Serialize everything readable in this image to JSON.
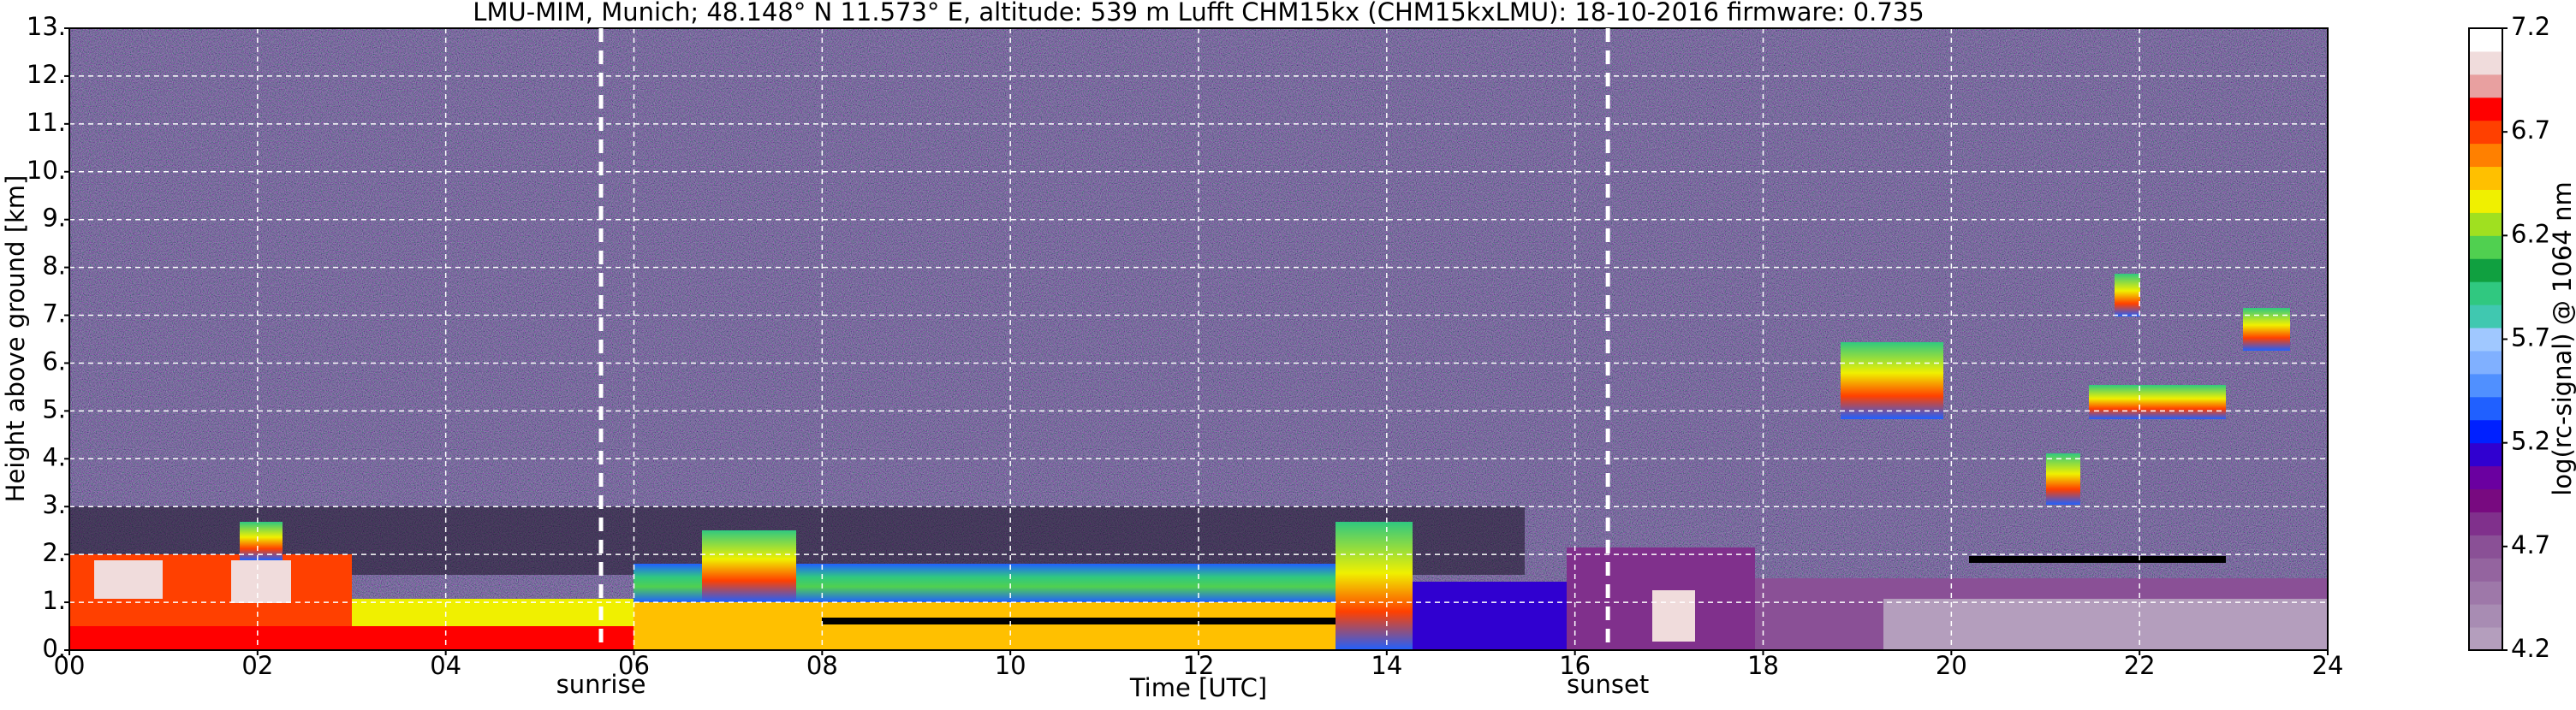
{
  "chart_data": {
    "type": "heatmap",
    "title": "LMU-MIM, Munich; 48.148° N 11.573° E, altitude: 539 m    Lufft CHM15kx (CHM15kxLMU): 18-10-2016    firmware: 0.735",
    "x_label": "Time [UTC]",
    "y_label": "Height above ground [km]",
    "xlim": [
      0,
      24
    ],
    "xticks": [
      {
        "value": 0,
        "label": "00"
      },
      {
        "value": 2,
        "label": "02"
      },
      {
        "value": 4,
        "label": "04"
      },
      {
        "value": 6,
        "label": "06"
      },
      {
        "value": 8,
        "label": "08"
      },
      {
        "value": 10,
        "label": "10"
      },
      {
        "value": 12,
        "label": "12"
      },
      {
        "value": 14,
        "label": "14"
      },
      {
        "value": 16,
        "label": "16"
      },
      {
        "value": 18,
        "label": "18"
      },
      {
        "value": 20,
        "label": "20"
      },
      {
        "value": 22,
        "label": "22"
      },
      {
        "value": 24,
        "label": "24"
      }
    ],
    "ylim": [
      0,
      13
    ],
    "yticks": [
      {
        "value": 0,
        "label": "0."
      },
      {
        "value": 1,
        "label": "1."
      },
      {
        "value": 2,
        "label": "2."
      },
      {
        "value": 3,
        "label": "3."
      },
      {
        "value": 4,
        "label": "4."
      },
      {
        "value": 5,
        "label": "5."
      },
      {
        "value": 6,
        "label": "6."
      },
      {
        "value": 7,
        "label": "7."
      },
      {
        "value": 8,
        "label": "8."
      },
      {
        "value": 9,
        "label": "9."
      },
      {
        "value": 10,
        "label": "10."
      },
      {
        "value": 11,
        "label": "11."
      },
      {
        "value": 12,
        "label": "12."
      },
      {
        "value": 13,
        "label": "13."
      }
    ],
    "grid": true,
    "annotations": [
      {
        "text": "sunrise",
        "x": 5.65
      },
      {
        "text": "sunset",
        "x": 16.35
      }
    ],
    "colorbar": {
      "label": "log(rc-signal) @ 1064 nm",
      "lim": [
        4.2,
        7.2
      ],
      "ticks": [
        4.2,
        4.7,
        5.2,
        5.7,
        6.2,
        6.7,
        7.2
      ],
      "colors": [
        "#b49ebd",
        "#a88cb3",
        "#9e78a9",
        "#94649f",
        "#8a5096",
        "#80308c",
        "#780a80",
        "#6a00a0",
        "#3000d0",
        "#0020ff",
        "#2060ff",
        "#5090ff",
        "#80b0ff",
        "#a0c8ff",
        "#40c8b0",
        "#30c880",
        "#10a040",
        "#50d050",
        "#a0e020",
        "#f0f000",
        "#ffc000",
        "#ff8000",
        "#ff4000",
        "#ff0000",
        "#e8a0a0",
        "#f0dcdc",
        "#ffffff"
      ]
    }
  }
}
